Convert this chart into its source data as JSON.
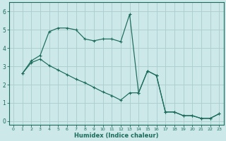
{
  "background_color": "#cce8e8",
  "grid_color": "#aacccc",
  "line_color": "#1a6b5a",
  "xlabel": "Humidex (Indice chaleur)",
  "ylim": [
    -0.2,
    6.5
  ],
  "xlim": [
    -0.5,
    23.5
  ],
  "yticks": [
    0,
    1,
    2,
    3,
    4,
    5,
    6
  ],
  "xticks": [
    0,
    1,
    2,
    3,
    4,
    5,
    6,
    7,
    8,
    9,
    10,
    11,
    12,
    13,
    14,
    15,
    16,
    17,
    18,
    19,
    20,
    21,
    22,
    23
  ],
  "curve1_x": [
    1,
    2,
    3,
    4,
    5,
    6,
    7,
    8,
    9,
    10,
    11,
    12,
    13,
    14,
    15,
    16,
    17,
    18,
    19,
    20,
    21,
    22,
    23
  ],
  "curve1_y": [
    2.6,
    3.3,
    3.6,
    4.9,
    5.1,
    5.1,
    5.0,
    4.5,
    4.4,
    4.5,
    4.5,
    4.35,
    5.85,
    1.55,
    2.75,
    2.5,
    0.5,
    0.5,
    0.3,
    0.3,
    0.15,
    0.15,
    0.4
  ],
  "curve2_x": [
    1,
    2,
    3,
    4,
    5,
    6,
    7,
    8,
    9,
    10,
    11,
    12,
    13,
    14,
    15,
    16,
    17,
    18,
    19,
    20,
    21,
    22,
    23
  ],
  "curve2_y": [
    2.6,
    3.2,
    3.4,
    3.05,
    2.8,
    2.55,
    2.3,
    2.1,
    1.85,
    1.6,
    1.4,
    1.15,
    1.55,
    1.55,
    2.75,
    2.5,
    0.5,
    0.5,
    0.3,
    0.3,
    0.15,
    0.15,
    0.4
  ]
}
